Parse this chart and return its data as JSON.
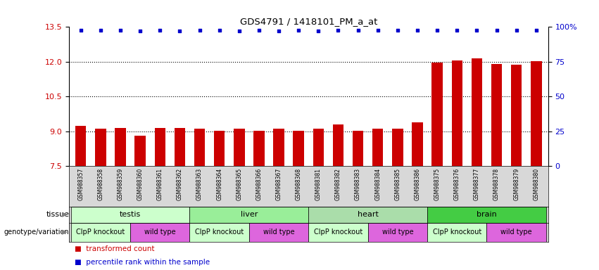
{
  "title": "GDS4791 / 1418101_PM_a_at",
  "samples": [
    "GSM988357",
    "GSM988358",
    "GSM988359",
    "GSM988360",
    "GSM988361",
    "GSM988362",
    "GSM988363",
    "GSM988364",
    "GSM988365",
    "GSM988366",
    "GSM988367",
    "GSM988368",
    "GSM988381",
    "GSM988382",
    "GSM988383",
    "GSM988384",
    "GSM988385",
    "GSM988386",
    "GSM988375",
    "GSM988376",
    "GSM988377",
    "GSM988378",
    "GSM988379",
    "GSM988380"
  ],
  "bar_values": [
    9.22,
    9.12,
    9.13,
    8.82,
    9.13,
    9.13,
    9.1,
    9.03,
    9.12,
    9.02,
    9.12,
    9.02,
    9.1,
    9.3,
    9.02,
    9.12,
    9.12,
    9.4,
    11.97,
    12.05,
    12.15,
    11.9,
    11.88,
    12.02
  ],
  "percentile_values": [
    13.35,
    13.35,
    13.35,
    13.32,
    13.35,
    13.34,
    13.35,
    13.35,
    13.33,
    13.35,
    13.34,
    13.35,
    13.32,
    13.35,
    13.35,
    13.35,
    13.35,
    13.35,
    13.35,
    13.35,
    13.35,
    13.35,
    13.35,
    13.35
  ],
  "bar_color": "#cc0000",
  "dot_color": "#0000cc",
  "ylim_left": [
    7.5,
    13.5
  ],
  "ylim_right": [
    0,
    100
  ],
  "yticks_left": [
    7.5,
    9.0,
    10.5,
    12.0,
    13.5
  ],
  "yticks_right": [
    0,
    25,
    50,
    75,
    100
  ],
  "hlines": [
    9.0,
    10.5,
    12.0
  ],
  "tissue_groups": [
    {
      "label": "testis",
      "start": 0,
      "end": 6,
      "color": "#ccffcc"
    },
    {
      "label": "liver",
      "start": 6,
      "end": 12,
      "color": "#99ee99"
    },
    {
      "label": "heart",
      "start": 12,
      "end": 18,
      "color": "#aaddaa"
    },
    {
      "label": "brain",
      "start": 18,
      "end": 24,
      "color": "#44cc44"
    }
  ],
  "genotype_groups": [
    {
      "label": "ClpP knockout",
      "start": 0,
      "end": 3,
      "color": "#ccffcc"
    },
    {
      "label": "wild type",
      "start": 3,
      "end": 6,
      "color": "#dd66dd"
    },
    {
      "label": "ClpP knockout",
      "start": 6,
      "end": 9,
      "color": "#ccffcc"
    },
    {
      "label": "wild type",
      "start": 9,
      "end": 12,
      "color": "#dd66dd"
    },
    {
      "label": "ClpP knockout",
      "start": 12,
      "end": 15,
      "color": "#ccffcc"
    },
    {
      "label": "wild type",
      "start": 15,
      "end": 18,
      "color": "#dd66dd"
    },
    {
      "label": "ClpP knockout",
      "start": 18,
      "end": 21,
      "color": "#ccffcc"
    },
    {
      "label": "wild type",
      "start": 21,
      "end": 24,
      "color": "#dd66dd"
    }
  ],
  "bar_width": 0.55,
  "background_color": "#ffffff",
  "xticklabel_bg": "#d8d8d8",
  "tissue_label": "tissue",
  "geno_label": "genotype/variation",
  "legend_items": [
    {
      "label": "transformed count",
      "color": "#cc0000"
    },
    {
      "label": "percentile rank within the sample",
      "color": "#0000cc"
    }
  ]
}
